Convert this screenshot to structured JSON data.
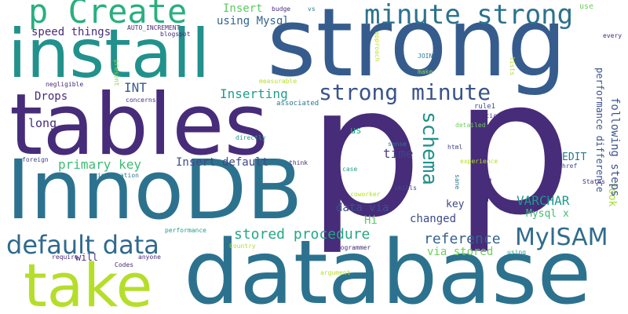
{
  "words": [
    {
      "text": "p",
      "color": "#472c7a"
    },
    {
      "text": "p",
      "color": "#472c7a"
    },
    {
      "text": "database",
      "color": "#2c728e"
    },
    {
      "text": "strong",
      "color": "#365c8d"
    },
    {
      "text": "InnoDB",
      "color": "#2c728e"
    },
    {
      "text": "tables",
      "color": "#472c7a"
    },
    {
      "text": "install",
      "color": "#21918c"
    },
    {
      "text": "take",
      "color": "#b5de2b"
    },
    {
      "text": "p Create",
      "color": "#29af7f"
    },
    {
      "text": "minute strong",
      "color": "#2c728e"
    },
    {
      "text": "default data",
      "color": "#306a8e"
    },
    {
      "text": "MyISAM",
      "color": "#2f6c8e"
    },
    {
      "text": "strong minute",
      "color": "#3a538b"
    },
    {
      "text": "schema",
      "color": "#21918c"
    },
    {
      "text": "stored procedure",
      "color": "#22a884"
    },
    {
      "text": "reference",
      "color": "#33638d"
    },
    {
      "text": "via stored",
      "color": "#6ece58"
    },
    {
      "text": "primary key",
      "color": "#3dbc74"
    },
    {
      "text": "Insert default",
      "color": "#3e4989"
    },
    {
      "text": "VARCHAR",
      "color": "#1f998a"
    },
    {
      "text": "Inserting",
      "color": "#1f9e89"
    },
    {
      "text": "data via",
      "color": "#3b518b"
    },
    {
      "text": "changed",
      "color": "#3e4989"
    },
    {
      "text": "lot",
      "color": "#472c7a"
    },
    {
      "text": "time",
      "color": "#424086"
    },
    {
      "text": "INT",
      "color": "#375b8d"
    },
    {
      "text": "long",
      "color": "#472c7a"
    },
    {
      "text": "Hi",
      "color": "#5ec962"
    },
    {
      "text": "Mysql x",
      "color": "#3dbc74"
    },
    {
      "text": "took",
      "color": "#a5db36"
    },
    {
      "text": "following steps",
      "color": "#3b528b"
    },
    {
      "text": "performance difference",
      "color": "#3b528b"
    },
    {
      "text": "EDIT",
      "color": "#2a788e"
    },
    {
      "text": "key",
      "color": "#3e4989"
    },
    {
      "text": "Insert",
      "color": "#5ec962"
    },
    {
      "text": "using Mysql",
      "color": "#33638d"
    },
    {
      "text": "Drops",
      "color": "#472c7a"
    },
    {
      "text": "speed things",
      "color": "#472c7a"
    },
    {
      "text": "us",
      "color": "#22a884"
    },
    {
      "text": "will",
      "color": "#472c7a"
    },
    {
      "text": "budge",
      "color": "#472c7a"
    },
    {
      "text": "vs",
      "color": "#2a788e"
    },
    {
      "text": "use",
      "color": "#6ece58"
    },
    {
      "text": "every",
      "color": "#472c7a"
    },
    {
      "text": "AUTO_INCREMENT",
      "color": "#472c7a"
    },
    {
      "text": "blogspot",
      "color": "#472c7a"
    },
    {
      "text": "approach",
      "color": "#c2df23"
    },
    {
      "text": "JOIN",
      "color": "#2a788e"
    },
    {
      "text": "make",
      "color": "#84d44b"
    },
    {
      "text": "lists",
      "color": "#b5de2b"
    },
    {
      "text": "present",
      "color": "#86d549"
    },
    {
      "text": "negligible",
      "color": "#472c7a"
    },
    {
      "text": "measurable",
      "color": "#b5de2b"
    },
    {
      "text": "concerns",
      "color": "#472c7a"
    },
    {
      "text": "associated",
      "color": "#2a788e"
    },
    {
      "text": "rule1",
      "color": "#3e4989"
    },
    {
      "text": "particular",
      "color": "#472c7a"
    },
    {
      "text": "detailed",
      "color": "#6ece58"
    },
    {
      "text": "directly",
      "color": "#1f9e89"
    },
    {
      "text": "html",
      "color": "#414487"
    },
    {
      "text": "sense",
      "color": "#2a788e"
    },
    {
      "text": "foreign",
      "color": "#414487"
    },
    {
      "text": "think",
      "color": "#472c7a"
    },
    {
      "text": "experience",
      "color": "#b5de2b"
    },
    {
      "text": "href",
      "color": "#3e4989"
    },
    {
      "text": "States",
      "color": "#472c7a"
    },
    {
      "text": "information",
      "color": "#2a788e"
    },
    {
      "text": "case",
      "color": "#1f9e89"
    },
    {
      "text": "skills",
      "color": "#3e4989"
    },
    {
      "text": "sane",
      "color": "#2a788e"
    },
    {
      "text": "coworker",
      "color": "#b5de2b"
    },
    {
      "text": "performance",
      "color": "#1f9e89"
    },
    {
      "text": "require",
      "color": "#472c7a"
    },
    {
      "text": "anyone",
      "color": "#472c7a"
    },
    {
      "text": "Country",
      "color": "#b5de2b"
    },
    {
      "text": "programmer",
      "color": "#472c7a"
    },
    {
      "text": "using",
      "color": "#1f9e89"
    },
    {
      "text": "Codes",
      "color": "#472c7a"
    },
    {
      "text": "argument",
      "color": "#b5de2b"
    }
  ]
}
